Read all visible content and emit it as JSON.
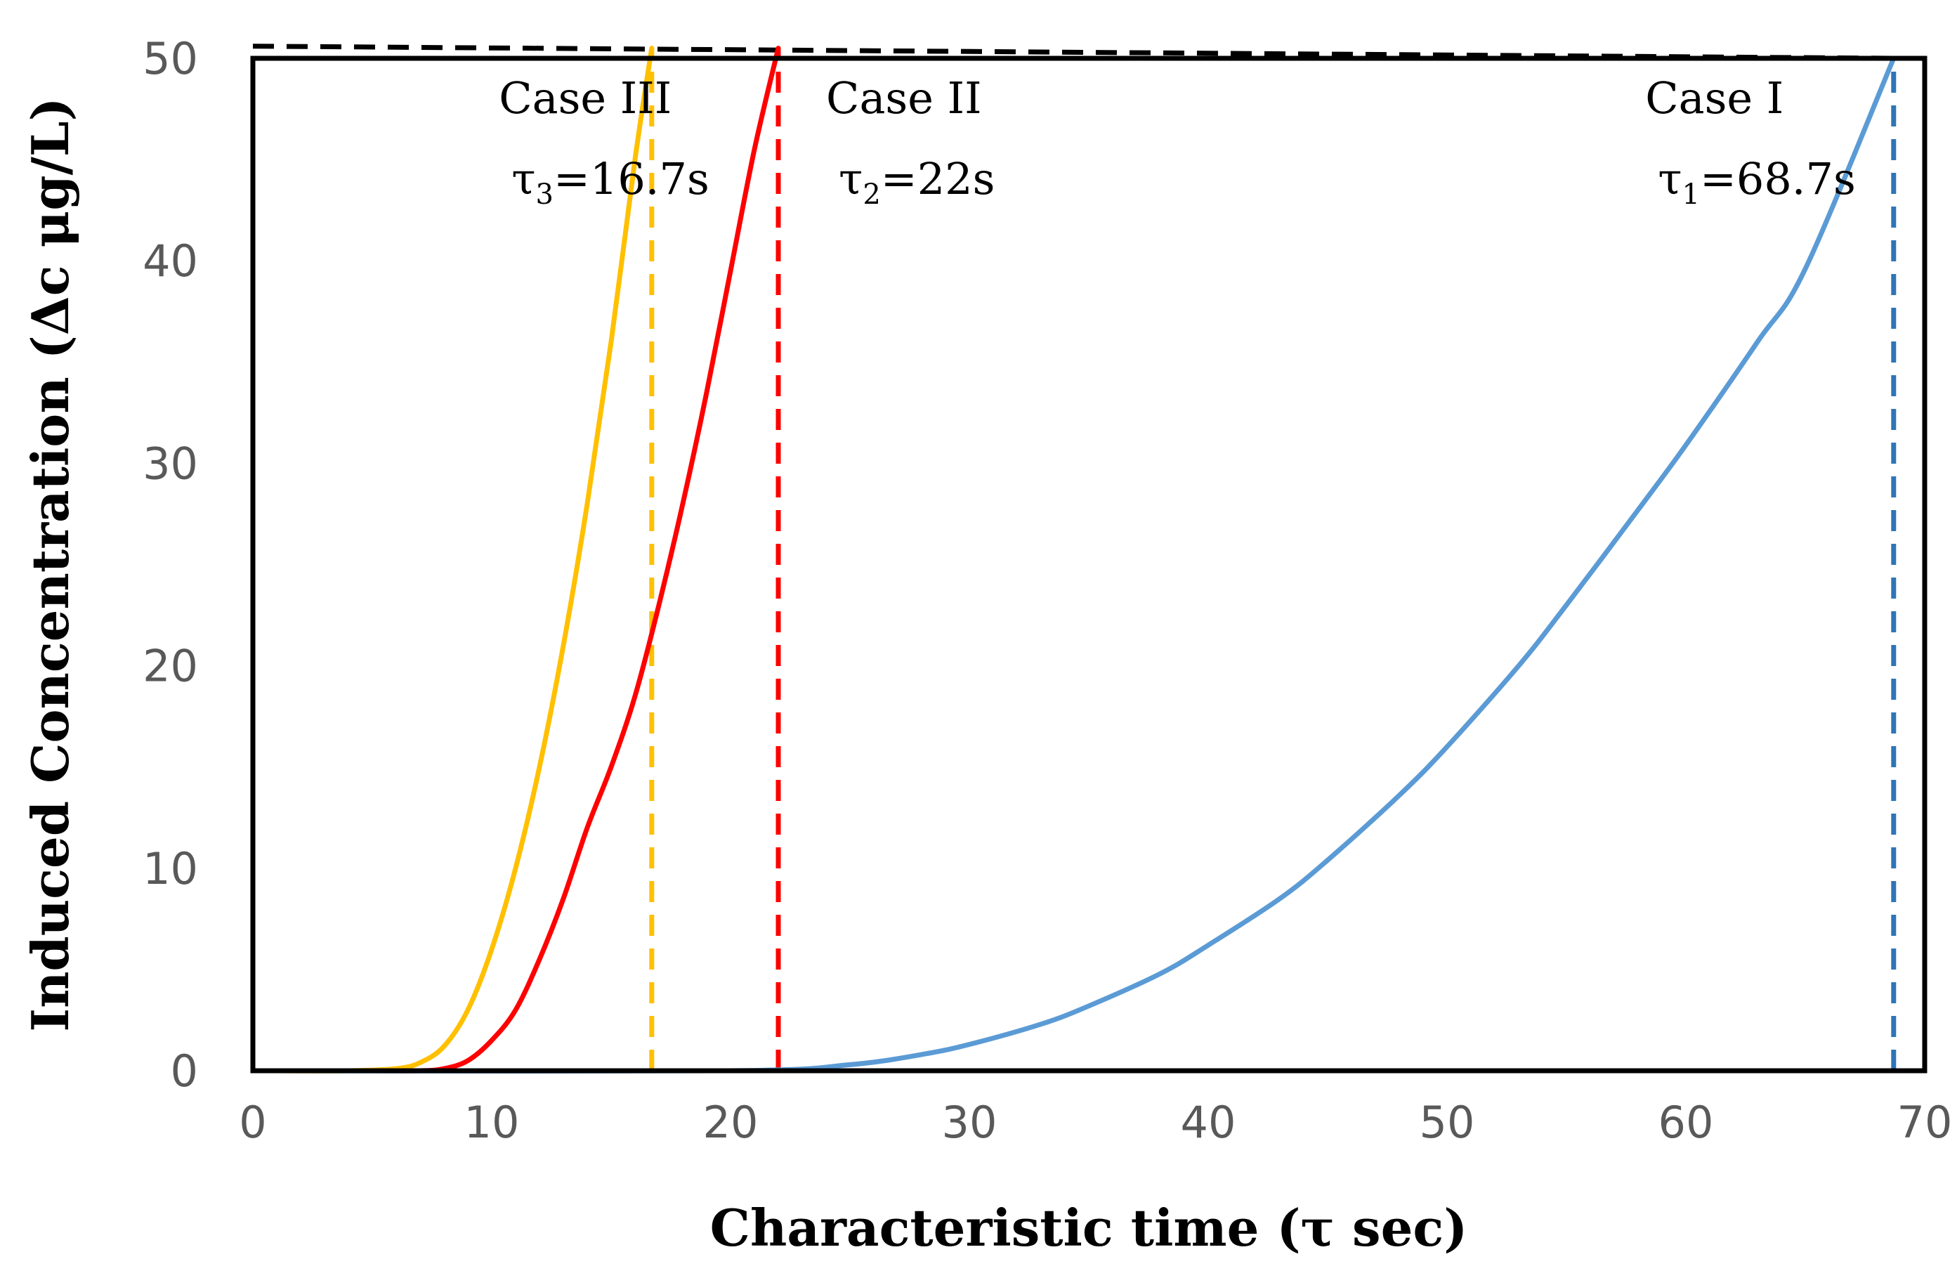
{
  "chart_data": {
    "type": "line",
    "title": "",
    "xlabel": "Characteristic time (τ sec)",
    "ylabel": "Induced Concentration (Δc μg/L)",
    "xlim": [
      0,
      70
    ],
    "ylim": [
      0,
      50
    ],
    "x_ticks": [
      0,
      10,
      20,
      30,
      40,
      50,
      60,
      70
    ],
    "y_ticks": [
      0,
      10,
      20,
      30,
      40,
      50
    ],
    "x_tick_labels": [
      "0",
      "10",
      "20",
      "30",
      "40",
      "50",
      "60",
      "70"
    ],
    "y_tick_labels": [
      "0",
      "10",
      "20",
      "30",
      "40",
      "50"
    ],
    "grid": false,
    "series": [
      {
        "name": "Case III",
        "color": "#ffc000",
        "x": [
          1,
          4,
          6,
          7,
          8,
          9,
          10,
          11,
          12,
          13,
          14,
          15,
          16,
          16.7
        ],
        "y": [
          0,
          0,
          0.1,
          0.4,
          1.2,
          3.0,
          6.0,
          10.0,
          15.0,
          21.0,
          28.0,
          36.0,
          45.0,
          50.5
        ]
      },
      {
        "name": "Case II",
        "color": "#ff0000",
        "x": [
          1,
          5,
          7,
          8,
          9,
          10,
          11,
          12,
          13,
          14,
          15,
          16,
          17,
          18,
          19,
          20,
          21,
          22
        ],
        "y": [
          0,
          0,
          0,
          0.1,
          0.5,
          1.5,
          3.0,
          5.5,
          8.5,
          12.0,
          15.0,
          18.5,
          23.0,
          28.0,
          33.5,
          39.5,
          45.5,
          50.5
        ]
      },
      {
        "name": "Case I",
        "color": "#5b9bd5",
        "x": [
          1,
          20,
          25,
          28,
          30,
          33,
          35,
          38,
          40,
          43,
          45,
          48,
          50,
          53,
          55,
          58,
          60,
          63,
          65,
          68.7
        ],
        "y": [
          0,
          0,
          0.3,
          0.8,
          1.3,
          2.3,
          3.2,
          4.8,
          6.2,
          8.5,
          10.4,
          13.6,
          16.0,
          20.0,
          23.0,
          27.7,
          30.9,
          36.0,
          39.6,
          50.0
        ]
      }
    ],
    "reference_lines": [
      {
        "orientation": "vertical",
        "x": 16.7,
        "y_from": 0,
        "y_to": 50.5,
        "color": "#ffc000",
        "style": "dashed"
      },
      {
        "orientation": "vertical",
        "x": 22,
        "y_from": 0,
        "y_to": 50.5,
        "color": "#ff0000",
        "style": "dashed"
      },
      {
        "orientation": "vertical",
        "x": 68.7,
        "y_from": 0,
        "y_to": 50.0,
        "color": "#2e75b6",
        "style": "dashed"
      },
      {
        "orientation": "horizontal",
        "x_from": 0,
        "x_to": 68.7,
        "y_from": 50.6,
        "y_to": 50.0,
        "color": "#000000",
        "style": "dashed"
      }
    ],
    "annotations": [
      {
        "case": "Case III",
        "tau_symbol": "τ",
        "tau_sub": "3",
        "tau_value": "=16.7s",
        "anchor_x": 10.3,
        "case_y": 47.3,
        "tau_y": 43.3
      },
      {
        "case": "Case II",
        "tau_symbol": "τ",
        "tau_sub": "2",
        "tau_value": "=22s",
        "anchor_x": 24,
        "case_y": 47.3,
        "tau_y": 43.3
      },
      {
        "case": "Case I",
        "tau_symbol": "τ",
        "tau_sub": "1",
        "tau_value": "=68.7s",
        "anchor_x": 58.3,
        "case_y": 47.3,
        "tau_y": 43.3
      }
    ]
  }
}
